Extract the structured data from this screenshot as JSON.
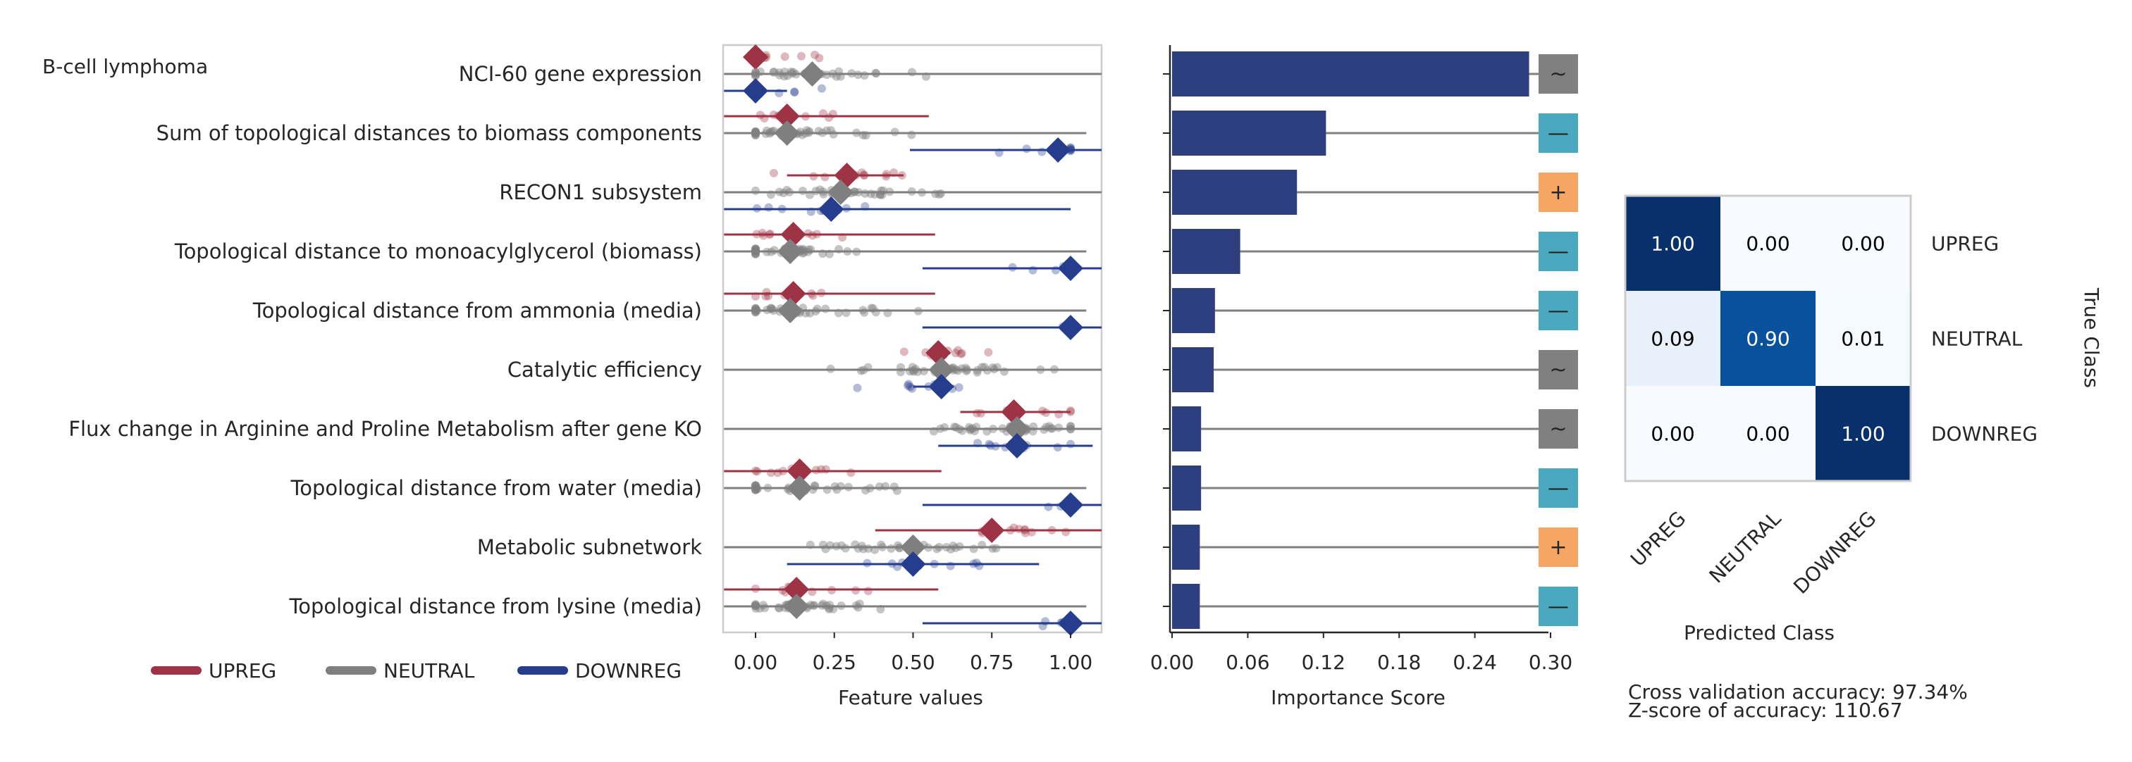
{
  "chart_data": [
    {
      "type": "scatter",
      "title": "B-cell lymphoma",
      "xlabel": "Feature values",
      "xlim": [
        -0.1,
        1.1
      ],
      "x_ticks": [
        "0.00",
        "0.25",
        "0.50",
        "0.75",
        "1.00"
      ],
      "features": [
        "NCI-60 gene expression",
        "Sum of topological distances to biomass components",
        "RECON1 subsystem",
        "Topological distance to monoacylglycerol (biomass)",
        "Topological distance from ammonia (media)",
        "Catalytic efficiency",
        "Flux change in Arginine and Proline Metabolism after gene KO",
        "Topological distance from water (media)",
        "Metabolic subnetwork",
        "Topological distance from lysine (media)"
      ],
      "legend": [
        "UPREG",
        "NEUTRAL",
        "DOWNREG"
      ],
      "legend_position": "bottom-left",
      "series": [
        {
          "name": "UPREG",
          "color": "#9e3346",
          "means": [
            0.0,
            0.1,
            0.29,
            0.12,
            0.12,
            0.58,
            0.82,
            0.14,
            0.75,
            0.13
          ],
          "lo": [
            0.0,
            -0.1,
            0.1,
            -0.1,
            -0.1,
            0.56,
            0.65,
            -0.1,
            0.38,
            -0.1
          ],
          "hi": [
            0.0,
            0.55,
            0.47,
            0.57,
            0.57,
            0.61,
            1.0,
            0.59,
            1.1,
            0.58
          ]
        },
        {
          "name": "NEUTRAL",
          "color": "#7f7f7f",
          "means": [
            0.18,
            0.1,
            0.27,
            0.11,
            0.11,
            0.59,
            0.83,
            0.14,
            0.5,
            0.13
          ],
          "lo": [
            -0.1,
            -0.1,
            -0.1,
            -0.1,
            -0.1,
            -0.1,
            -0.1,
            -0.1,
            -0.1,
            -0.1
          ],
          "hi": [
            1.1,
            1.05,
            1.1,
            1.05,
            1.05,
            1.1,
            1.1,
            1.05,
            1.1,
            1.05
          ]
        },
        {
          "name": "DOWNREG",
          "color": "#253d8c",
          "means": [
            0.0,
            0.96,
            0.24,
            1.0,
            1.0,
            0.59,
            0.83,
            1.0,
            0.5,
            1.0
          ],
          "lo": [
            -0.1,
            0.49,
            -0.1,
            0.53,
            0.53,
            0.5,
            0.58,
            0.53,
            0.1,
            0.53
          ],
          "hi": [
            0.1,
            1.1,
            1.0,
            1.1,
            1.1,
            0.63,
            1.07,
            1.1,
            0.9,
            1.1
          ]
        }
      ]
    },
    {
      "type": "bar",
      "orientation": "horizontal",
      "xlabel": "Importance Score",
      "xlim": [
        0,
        0.3
      ],
      "x_ticks": [
        "0.00",
        "0.06",
        "0.12",
        "0.18",
        "0.24",
        "0.30"
      ],
      "bar_color": "#2d3f7f",
      "categories": [
        "NCI-60 gene expression",
        "Sum of topological distances to biomass components",
        "RECON1 subsystem",
        "Topological distance to monoacylglycerol (biomass)",
        "Topological distance from ammonia (media)",
        "Catalytic efficiency",
        "Flux change in Arginine and Proline Metabolism after gene KO",
        "Topological distance from water (media)",
        "Metabolic subnetwork",
        "Topological distance from lysine (media)"
      ],
      "values": [
        0.283,
        0.122,
        0.099,
        0.054,
        0.034,
        0.033,
        0.023,
        0.023,
        0.022,
        0.022
      ],
      "direction_markers": [
        "~",
        "—",
        "+",
        "—",
        "—",
        "~",
        "~",
        "—",
        "+",
        "—"
      ],
      "marker_colors": {
        "~": "#808080",
        "—": "#4aa8bf",
        "+": "#f5a662"
      }
    },
    {
      "type": "heatmap",
      "xlabel": "Predicted Class",
      "ylabel": "True Class",
      "row_labels": [
        "UPREG",
        "NEUTRAL",
        "DOWNREG"
      ],
      "col_labels": [
        "UPREG",
        "NEUTRAL",
        "DOWNREG"
      ],
      "cells": [
        [
          "1.00",
          "0.00",
          "0.00"
        ],
        [
          "0.09",
          "0.90",
          "0.01"
        ],
        [
          "0.00",
          "0.00",
          "1.00"
        ]
      ],
      "values": [
        [
          1.0,
          0.0,
          0.0
        ],
        [
          0.09,
          0.9,
          0.01
        ],
        [
          0.0,
          0.0,
          1.0
        ]
      ],
      "colormap": "Blues"
    }
  ],
  "footer": {
    "accuracy": "Cross validation accuracy: 97.34%",
    "zscore": "Z-score of accuracy: 110.67"
  }
}
